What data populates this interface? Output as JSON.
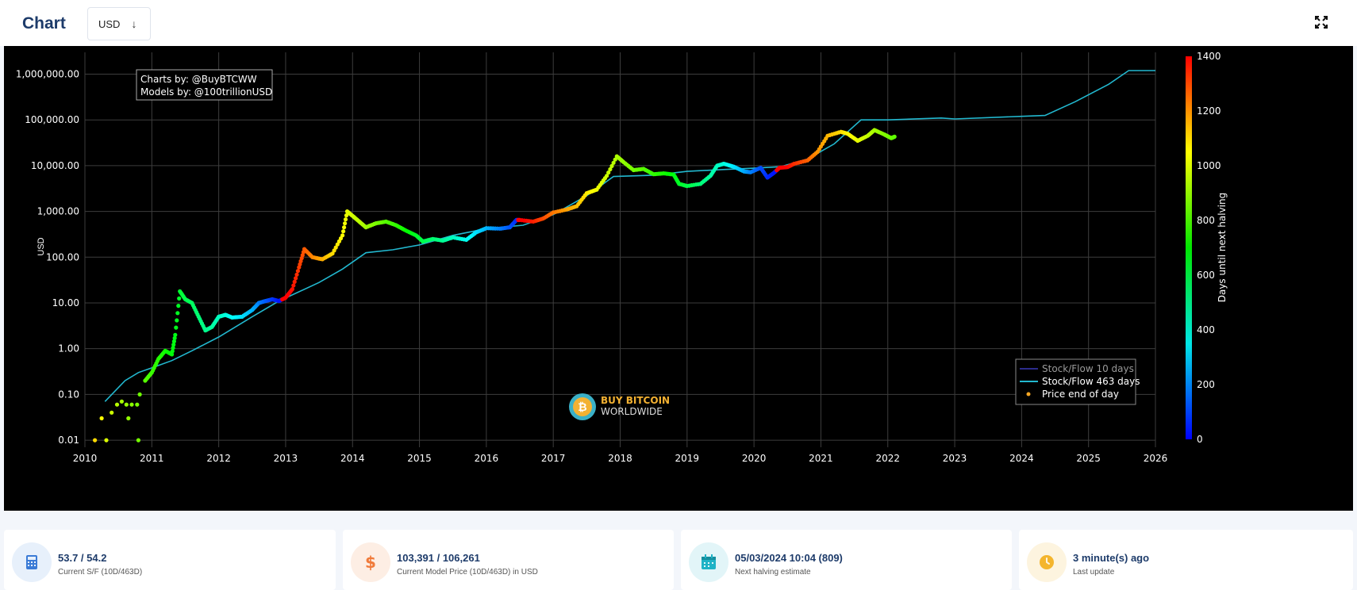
{
  "header": {
    "title": "Chart",
    "currency": "USD",
    "currency_arrow": "↓"
  },
  "icons": [
    "arrow-down-icon",
    "expand-icon",
    "calculator-icon",
    "dollar-icon",
    "calendar-icon",
    "clock-icon",
    "bitcoin-logo-icon"
  ],
  "chart_data": {
    "type": "line",
    "ylabel": "USD",
    "yscale": "log",
    "ylim": [
      0.007,
      3000000
    ],
    "xlim": [
      2010,
      2026
    ],
    "grid": true,
    "x_ticks": [
      "2010",
      "2011",
      "2012",
      "2013",
      "2014",
      "2015",
      "2016",
      "2017",
      "2018",
      "2019",
      "2020",
      "2021",
      "2022",
      "2023",
      "2024",
      "2025",
      "2026"
    ],
    "y_ticks": [
      {
        "v": 0.01,
        "label": "0.01"
      },
      {
        "v": 0.1,
        "label": "0.10"
      },
      {
        "v": 1,
        "label": "1.00"
      },
      {
        "v": 10,
        "label": "10.00"
      },
      {
        "v": 100,
        "label": "100.00"
      },
      {
        "v": 1000,
        "label": "1,000.00"
      },
      {
        "v": 10000,
        "label": "10,000.00"
      },
      {
        "v": 100000,
        "label": "100,000.00"
      },
      {
        "v": 1000000,
        "label": "1,000,000.00"
      }
    ],
    "annotation": [
      "Charts by: @BuyBTCWW",
      "Models by: @100trillionUSD"
    ],
    "watermark": {
      "line1": "BUY BITCOIN",
      "line2": "WORLDWIDE"
    },
    "colorbar": {
      "title": "Days until next halving",
      "min": 0,
      "max": 1400,
      "ticks": [
        "0",
        "200",
        "400",
        "600",
        "800",
        "1000",
        "1200",
        "1400"
      ]
    },
    "legend": {
      "position": "bottom-right",
      "items": [
        {
          "name": "Stock/Flow 10 days",
          "color": "#2b2b8c",
          "symbol": "line"
        },
        {
          "name": "Stock/Flow 463 days",
          "color": "#22b8cf",
          "symbol": "line"
        },
        {
          "name": "Price end of day",
          "color": "#f5a623",
          "symbol": "dot"
        }
      ]
    },
    "series": [
      {
        "name": "Stock/Flow 463 days",
        "color": "#22b8cf",
        "points": [
          [
            2010.3,
            0.07
          ],
          [
            2010.6,
            0.2
          ],
          [
            2010.8,
            0.3
          ],
          [
            2011.0,
            0.38
          ],
          [
            2011.3,
            0.55
          ],
          [
            2011.6,
            0.9
          ],
          [
            2012.0,
            1.8
          ],
          [
            2012.5,
            5
          ],
          [
            2012.9,
            11
          ],
          [
            2013.5,
            28
          ],
          [
            2013.85,
            55
          ],
          [
            2014.2,
            125
          ],
          [
            2014.6,
            145
          ],
          [
            2015.0,
            185
          ],
          [
            2015.5,
            300
          ],
          [
            2016.0,
            420
          ],
          [
            2016.55,
            500
          ],
          [
            2017.0,
            850
          ],
          [
            2017.5,
            2200
          ],
          [
            2017.9,
            5800
          ],
          [
            2018.5,
            6200
          ],
          [
            2019.0,
            7500
          ],
          [
            2019.5,
            8200
          ],
          [
            2020.0,
            8800
          ],
          [
            2020.4,
            9500
          ],
          [
            2020.8,
            14000
          ],
          [
            2021.2,
            30000
          ],
          [
            2021.6,
            100000
          ],
          [
            2022.0,
            100000
          ],
          [
            2022.8,
            110000
          ],
          [
            2023.0,
            105000
          ],
          [
            2024.0,
            120000
          ],
          [
            2024.35,
            125000
          ],
          [
            2024.8,
            250000
          ],
          [
            2025.3,
            600000
          ],
          [
            2025.6,
            1200000
          ],
          [
            2026.0,
            1200000
          ]
        ]
      },
      {
        "name": "Price end of day",
        "points": [
          [
            2010.15,
            0.01,
            1100
          ],
          [
            2010.25,
            0.03,
            1050
          ],
          [
            2010.32,
            0.01,
            1000
          ],
          [
            2010.4,
            0.04,
            980
          ],
          [
            2010.48,
            0.06,
            950
          ],
          [
            2010.55,
            0.07,
            930
          ],
          [
            2010.62,
            0.06,
            910
          ],
          [
            2010.65,
            0.03,
            900
          ],
          [
            2010.7,
            0.06,
            890
          ],
          [
            2010.78,
            0.06,
            870
          ],
          [
            2010.8,
            0.01,
            860
          ],
          [
            2010.82,
            0.1,
            850
          ],
          [
            2010.9,
            0.2,
            820
          ],
          [
            2011.0,
            0.3,
            780
          ],
          [
            2011.1,
            0.6,
            750
          ],
          [
            2011.2,
            0.9,
            720
          ],
          [
            2011.3,
            0.75,
            690
          ],
          [
            2011.35,
            2,
            670
          ],
          [
            2011.42,
            18,
            640
          ],
          [
            2011.5,
            12,
            600
          ],
          [
            2011.6,
            10,
            570
          ],
          [
            2011.7,
            5,
            540
          ],
          [
            2011.8,
            2.5,
            510
          ],
          [
            2011.9,
            3,
            480
          ],
          [
            2012.0,
            5,
            440
          ],
          [
            2012.1,
            5.5,
            400
          ],
          [
            2012.2,
            4.8,
            360
          ],
          [
            2012.35,
            5,
            310
          ],
          [
            2012.5,
            7,
            250
          ],
          [
            2012.6,
            10,
            180
          ],
          [
            2012.7,
            11,
            130
          ],
          [
            2012.8,
            12,
            80
          ],
          [
            2012.9,
            11,
            30
          ],
          [
            2013.0,
            13,
            1440
          ],
          [
            2013.1,
            20,
            1380
          ],
          [
            2013.2,
            60,
            1320
          ],
          [
            2013.28,
            150,
            1280
          ],
          [
            2013.4,
            100,
            1220
          ],
          [
            2013.55,
            90,
            1160
          ],
          [
            2013.7,
            120,
            1100
          ],
          [
            2013.85,
            300,
            1050
          ],
          [
            2013.92,
            1000,
            1020
          ],
          [
            2014.0,
            800,
            990
          ],
          [
            2014.1,
            600,
            960
          ],
          [
            2014.2,
            450,
            920
          ],
          [
            2014.35,
            550,
            870
          ],
          [
            2014.5,
            600,
            820
          ],
          [
            2014.65,
            500,
            770
          ],
          [
            2014.8,
            380,
            710
          ],
          [
            2014.95,
            300,
            650
          ],
          [
            2015.05,
            220,
            600
          ],
          [
            2015.2,
            250,
            550
          ],
          [
            2015.35,
            230,
            500
          ],
          [
            2015.5,
            270,
            440
          ],
          [
            2015.7,
            240,
            370
          ],
          [
            2015.85,
            350,
            310
          ],
          [
            2016.0,
            430,
            250
          ],
          [
            2016.2,
            420,
            180
          ],
          [
            2016.35,
            450,
            120
          ],
          [
            2016.45,
            650,
            60
          ],
          [
            2016.5,
            650,
            1420
          ],
          [
            2016.7,
            600,
            1360
          ],
          [
            2016.85,
            700,
            1300
          ],
          [
            2017.0,
            950,
            1240
          ],
          [
            2017.2,
            1100,
            1180
          ],
          [
            2017.35,
            1300,
            1140
          ],
          [
            2017.5,
            2500,
            1080
          ],
          [
            2017.65,
            3000,
            1030
          ],
          [
            2017.8,
            6000,
            980
          ],
          [
            2017.95,
            16000,
            940
          ],
          [
            2018.05,
            12000,
            900
          ],
          [
            2018.2,
            8000,
            860
          ],
          [
            2018.35,
            8500,
            820
          ],
          [
            2018.5,
            6500,
            770
          ],
          [
            2018.65,
            6800,
            730
          ],
          [
            2018.8,
            6400,
            680
          ],
          [
            2018.88,
            4000,
            650
          ],
          [
            2019.0,
            3600,
            610
          ],
          [
            2019.2,
            4000,
            540
          ],
          [
            2019.35,
            6000,
            480
          ],
          [
            2019.45,
            10000,
            440
          ],
          [
            2019.55,
            11000,
            400
          ],
          [
            2019.7,
            9500,
            320
          ],
          [
            2019.85,
            7500,
            240
          ],
          [
            2019.95,
            7200,
            180
          ],
          [
            2020.1,
            9000,
            110
          ],
          [
            2020.2,
            5500,
            60
          ],
          [
            2020.3,
            7000,
            30
          ],
          [
            2020.38,
            9000,
            1440
          ],
          [
            2020.5,
            9300,
            1400
          ],
          [
            2020.6,
            11000,
            1340
          ],
          [
            2020.8,
            13000,
            1270
          ],
          [
            2020.95,
            20000,
            1200
          ],
          [
            2021.1,
            45000,
            1150
          ],
          [
            2021.3,
            55000,
            1100
          ],
          [
            2021.4,
            50000,
            1060
          ],
          [
            2021.55,
            35000,
            1020
          ],
          [
            2021.7,
            45000,
            970
          ],
          [
            2021.8,
            60000,
            930
          ],
          [
            2021.95,
            48000,
            880
          ],
          [
            2022.05,
            40000,
            850
          ],
          [
            2022.1,
            43000,
            830
          ]
        ]
      }
    ]
  },
  "cards": [
    {
      "value": "53.7 / 54.2",
      "label": "Current S/F (10D/463D)",
      "icon": "calculator-icon",
      "color": "#3b7bd6",
      "bg": "#e7f0fb"
    },
    {
      "value": "103,391 / 106,261",
      "label": "Current Model Price (10D/463D) in USD",
      "icon": "dollar-icon",
      "color": "#f07a3a",
      "bg": "#fdeee4"
    },
    {
      "value": "05/03/2024 10:04 (809)",
      "label": "Next halving estimate",
      "icon": "calendar-icon",
      "color": "#1fb3c6",
      "bg": "#e2f5f8"
    },
    {
      "value": "3 minute(s) ago",
      "label": "Last update",
      "icon": "clock-icon",
      "color": "#f4b52d",
      "bg": "#fdf4df"
    }
  ]
}
